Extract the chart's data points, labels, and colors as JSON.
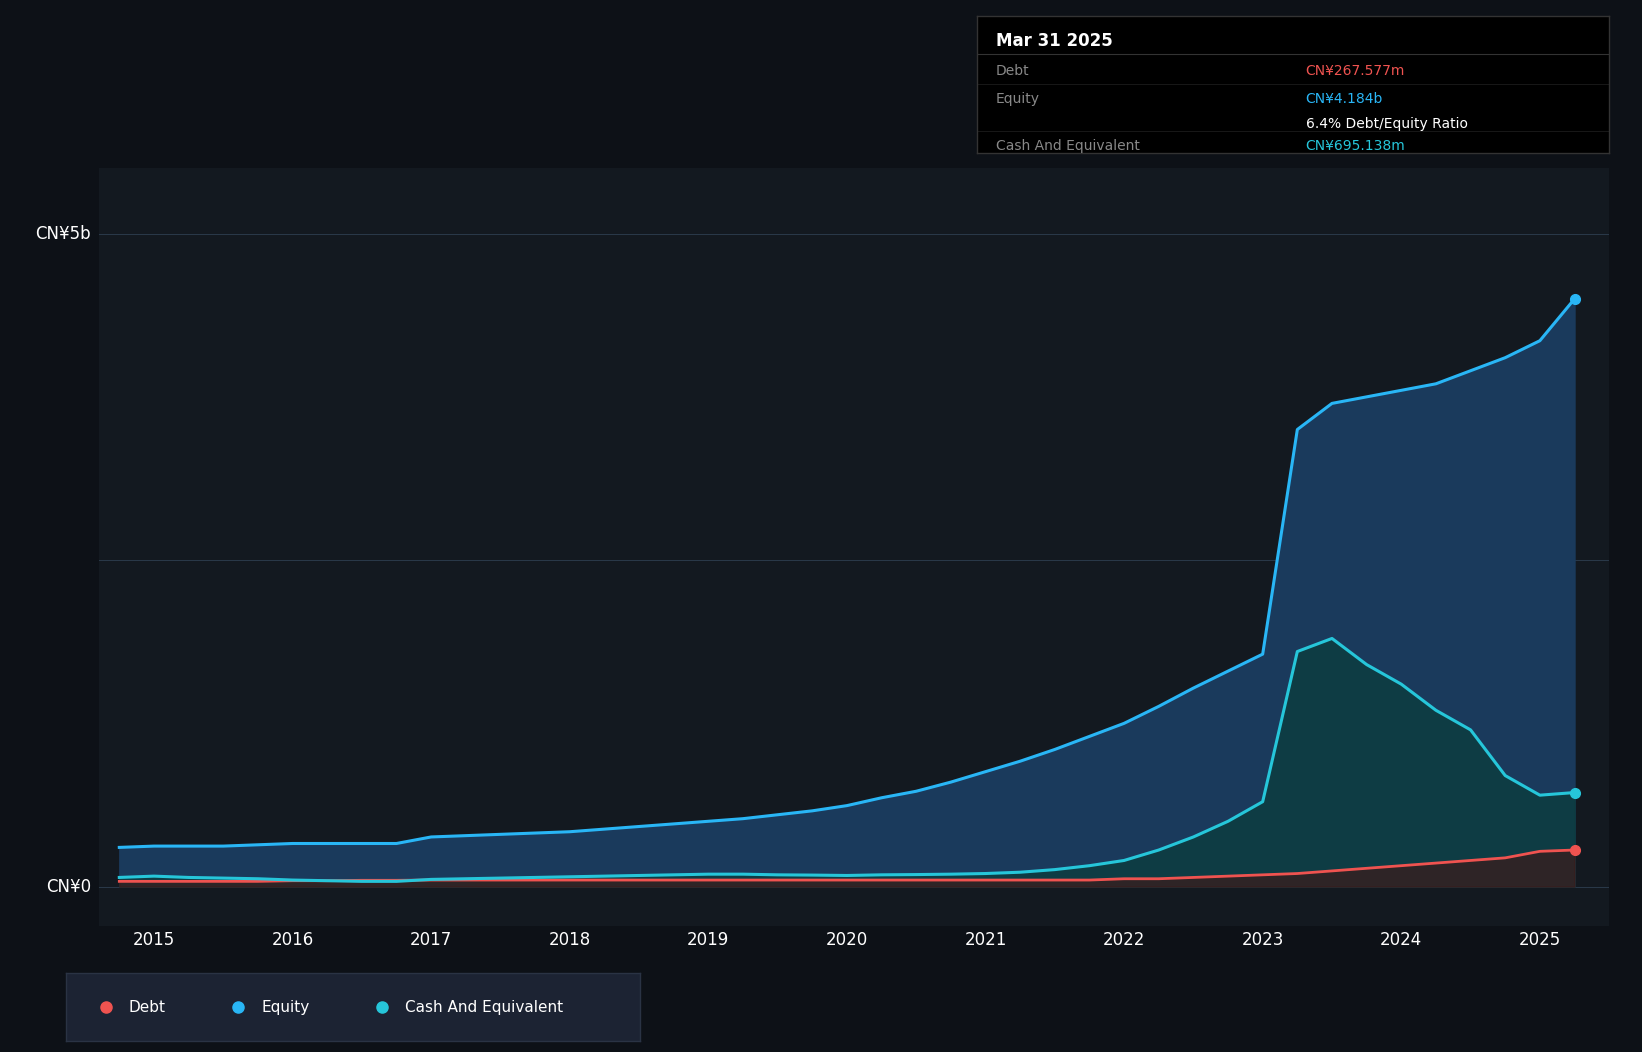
{
  "bg_color": "#0d1117",
  "plot_bg_color": "#131920",
  "ylabel_5b": "CN¥5b",
  "ylabel_0": "CN¥0",
  "x_ticks": [
    2015,
    2016,
    2017,
    2018,
    2019,
    2020,
    2021,
    2022,
    2023,
    2024,
    2025
  ],
  "equity_color": "#29b6f6",
  "debt_color": "#ef5350",
  "cash_color": "#26c6da",
  "fill_equity_color": "#1a3a5c",
  "fill_cash_color": "#0d3d40",
  "fill_debt_color": "#3d1a1a",
  "grid_color": "#2a3a4a",
  "tooltip_bg": "#000000",
  "tooltip_border": "#333333",
  "tooltip_title": "Mar 31 2025",
  "tooltip_debt_label": "Debt",
  "tooltip_debt_value": "CN¥267.577m",
  "tooltip_equity_label": "Equity",
  "tooltip_equity_value": "CN¥4.184b",
  "tooltip_ratio": "6.4% Debt/Equity Ratio",
  "tooltip_cash_label": "Cash And Equivalent",
  "tooltip_cash_value": "CN¥695.138m",
  "legend_items": [
    "Debt",
    "Equity",
    "Cash And Equivalent"
  ],
  "legend_colors": [
    "#ef5350",
    "#29b6f6",
    "#26c6da"
  ],
  "years": [
    2014.75,
    2015.0,
    2015.25,
    2015.5,
    2015.75,
    2016.0,
    2016.25,
    2016.5,
    2016.75,
    2017.0,
    2017.25,
    2017.5,
    2017.75,
    2018.0,
    2018.25,
    2018.5,
    2018.75,
    2019.0,
    2019.25,
    2019.5,
    2019.75,
    2020.0,
    2020.25,
    2020.5,
    2020.75,
    2021.0,
    2021.25,
    2021.5,
    2021.75,
    2022.0,
    2022.25,
    2022.5,
    2022.75,
    2023.0,
    2023.25,
    2023.5,
    2023.75,
    2024.0,
    2024.25,
    2024.5,
    2024.75,
    2025.0,
    2025.25
  ],
  "equity": [
    0.3,
    0.31,
    0.31,
    0.31,
    0.32,
    0.33,
    0.33,
    0.33,
    0.33,
    0.38,
    0.39,
    0.4,
    0.41,
    0.42,
    0.44,
    0.46,
    0.48,
    0.5,
    0.52,
    0.55,
    0.58,
    0.62,
    0.68,
    0.73,
    0.8,
    0.88,
    0.96,
    1.05,
    1.15,
    1.25,
    1.38,
    1.52,
    1.65,
    1.78,
    3.5,
    3.7,
    3.75,
    3.8,
    3.85,
    3.95,
    4.05,
    4.18,
    4.5
  ],
  "debt": [
    0.04,
    0.04,
    0.04,
    0.04,
    0.04,
    0.045,
    0.045,
    0.048,
    0.048,
    0.05,
    0.05,
    0.05,
    0.05,
    0.05,
    0.05,
    0.05,
    0.05,
    0.05,
    0.05,
    0.05,
    0.05,
    0.05,
    0.05,
    0.05,
    0.05,
    0.05,
    0.05,
    0.05,
    0.05,
    0.06,
    0.06,
    0.07,
    0.08,
    0.09,
    0.1,
    0.12,
    0.14,
    0.16,
    0.18,
    0.2,
    0.22,
    0.27,
    0.28
  ],
  "cash": [
    0.07,
    0.08,
    0.07,
    0.065,
    0.06,
    0.05,
    0.045,
    0.04,
    0.04,
    0.055,
    0.06,
    0.065,
    0.07,
    0.075,
    0.08,
    0.085,
    0.09,
    0.095,
    0.095,
    0.09,
    0.088,
    0.085,
    0.09,
    0.092,
    0.095,
    0.1,
    0.11,
    0.13,
    0.16,
    0.2,
    0.28,
    0.38,
    0.5,
    0.65,
    1.8,
    1.9,
    1.7,
    1.55,
    1.35,
    1.2,
    0.85,
    0.7,
    0.72
  ],
  "ylim_max": 5.5,
  "ylim_min": -0.3
}
